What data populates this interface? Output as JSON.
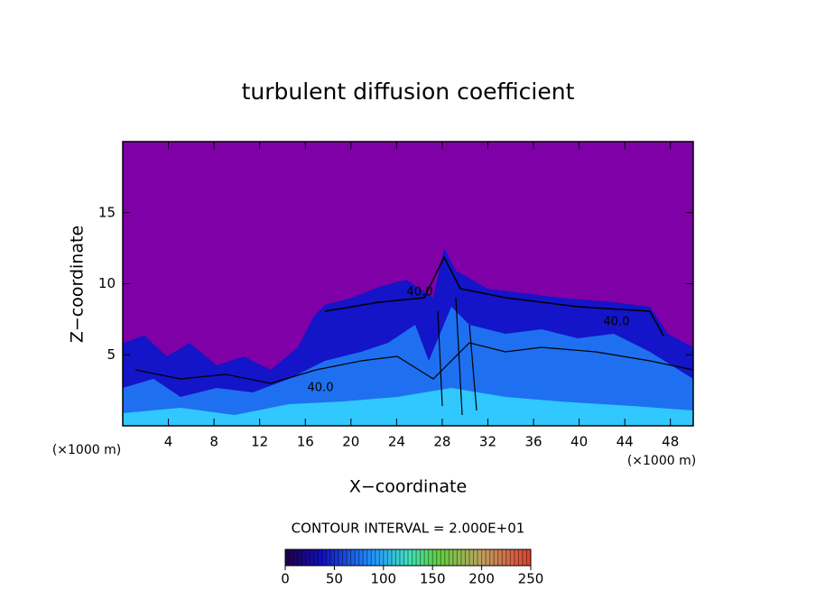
{
  "chart_data": {
    "type": "contour",
    "title": "turbulent diffusion coefficient",
    "xlabel": "X−coordinate",
    "ylabel": "Z−coordinate",
    "xunit": "(×1000 m)",
    "yunit": "(×1000 m)",
    "xlim": [
      0,
      50
    ],
    "ylim": [
      0,
      20
    ],
    "xticks": [
      4,
      8,
      12,
      16,
      20,
      24,
      28,
      32,
      36,
      40,
      44,
      48
    ],
    "yticks": [
      5,
      10,
      15
    ],
    "contour_interval": "CONTOUR INTERVAL = 2.000E+01",
    "contour_labels": [
      "40.0",
      "40.0",
      "40.0"
    ],
    "clim": [
      0,
      250
    ],
    "cticks": [
      0,
      50,
      100,
      150,
      200,
      250
    ]
  }
}
